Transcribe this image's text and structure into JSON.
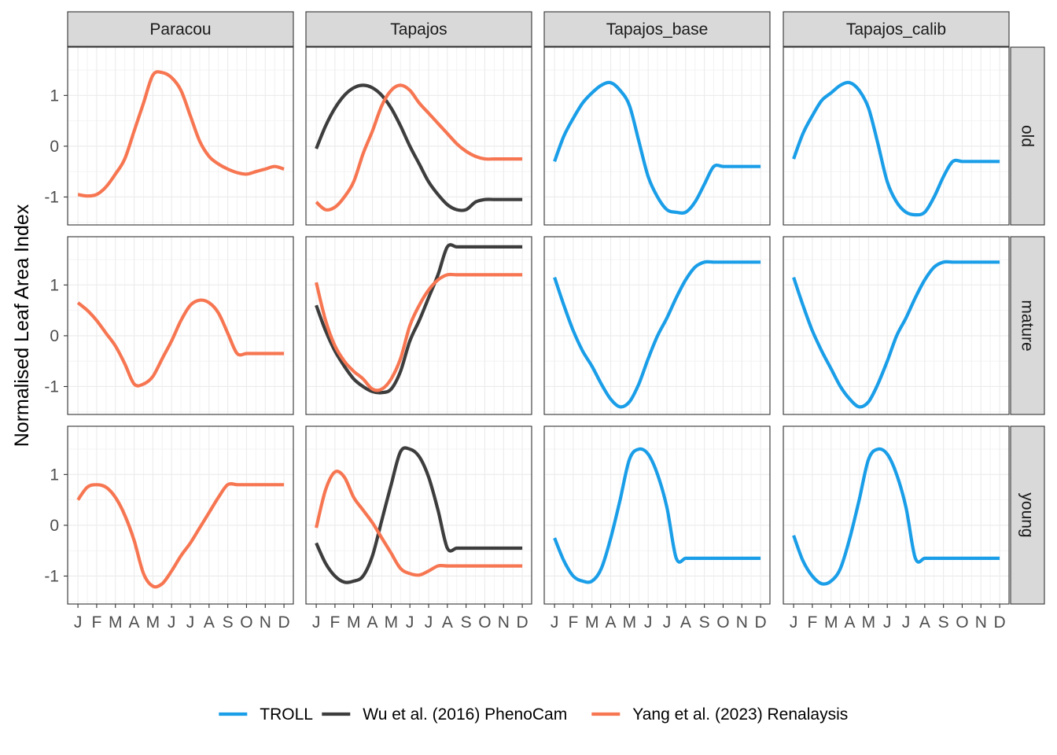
{
  "chart_data": {
    "type": "line",
    "ylabel": "Normalised Leaf Area Index",
    "xlabel": "",
    "x_ticks": [
      "J",
      "F",
      "M",
      "A",
      "M",
      "J",
      "J",
      "A",
      "S",
      "O",
      "N",
      "D"
    ],
    "y_ticks": [
      -1,
      0,
      1
    ],
    "ylim": [
      -1.55,
      1.95
    ],
    "xlim": [
      0.45,
      12.5
    ],
    "columns": [
      "Paracou",
      "Tapajos",
      "Tapajos_base",
      "Tapajos_calib"
    ],
    "rows": [
      "old",
      "mature",
      "young"
    ],
    "grid": true,
    "legend_position": "bottom",
    "legend": [
      {
        "name": "TROLL",
        "color": "#1a9ee8"
      },
      {
        "name": "Wu et al. (2016) PhenoCam",
        "color": "#3d3d3d"
      },
      {
        "name": "Yang et al. (2023) Renalaysis",
        "color": "#f77652"
      }
    ],
    "series": [
      {
        "panel": [
          "old",
          "Paracou"
        ],
        "name": "Yang et al. (2023) Renalaysis",
        "x": [
          1,
          1.5,
          2,
          2.5,
          3,
          3.5,
          4,
          4.5,
          5,
          5.5,
          6,
          6.5,
          7,
          7.5,
          8,
          8.5,
          9,
          9.5,
          10,
          10.5,
          11,
          11.5,
          12
        ],
        "y": [
          -0.95,
          -0.98,
          -0.95,
          -0.8,
          -0.55,
          -0.25,
          0.3,
          0.85,
          1.4,
          1.45,
          1.35,
          1.1,
          0.6,
          0.1,
          -0.2,
          -0.35,
          -0.45,
          -0.52,
          -0.55,
          -0.5,
          -0.45,
          -0.4,
          -0.45
        ]
      },
      {
        "panel": [
          "old",
          "Tapajos"
        ],
        "name": "Wu et al. (2016) PhenoCam",
        "x": [
          1,
          1.5,
          2,
          2.5,
          3,
          3.5,
          4,
          4.5,
          5,
          5.5,
          6,
          6.5,
          7,
          7.5,
          8,
          8.5,
          9,
          9.5,
          10,
          10.5,
          11,
          11.5,
          12
        ],
        "y": [
          -0.05,
          0.4,
          0.75,
          1.0,
          1.15,
          1.2,
          1.15,
          1.0,
          0.75,
          0.4,
          0.0,
          -0.35,
          -0.7,
          -0.95,
          -1.15,
          -1.25,
          -1.25,
          -1.1,
          -1.05,
          -1.05,
          -1.05,
          -1.05,
          -1.05
        ]
      },
      {
        "panel": [
          "old",
          "Tapajos"
        ],
        "name": "Yang et al. (2023) Renalaysis",
        "x": [
          1,
          1.5,
          2,
          2.5,
          3,
          3.5,
          4,
          4.5,
          5,
          5.5,
          6,
          6.5,
          7,
          7.5,
          8,
          8.5,
          9,
          9.5,
          10,
          10.5,
          11,
          11.5,
          12
        ],
        "y": [
          -1.1,
          -1.25,
          -1.2,
          -1.0,
          -0.7,
          -0.15,
          0.3,
          0.8,
          1.1,
          1.2,
          1.1,
          0.85,
          0.65,
          0.45,
          0.25,
          0.05,
          -0.1,
          -0.2,
          -0.25,
          -0.25,
          -0.25,
          -0.25,
          -0.25
        ]
      },
      {
        "panel": [
          "old",
          "Tapajos_base"
        ],
        "name": "TROLL",
        "x": [
          1,
          1.5,
          2,
          2.5,
          3,
          3.5,
          4,
          4.5,
          5,
          5.5,
          6,
          6.5,
          7,
          7.5,
          8,
          8.5,
          9,
          9.5,
          10,
          10.5,
          11,
          11.5,
          12
        ],
        "y": [
          -0.3,
          0.2,
          0.55,
          0.85,
          1.05,
          1.2,
          1.25,
          1.1,
          0.8,
          0.1,
          -0.6,
          -1.0,
          -1.25,
          -1.3,
          -1.3,
          -1.1,
          -0.75,
          -0.4,
          -0.4,
          -0.4,
          -0.4,
          -0.4,
          -0.4
        ]
      },
      {
        "panel": [
          "old",
          "Tapajos_calib"
        ],
        "name": "TROLL",
        "x": [
          1,
          1.5,
          2,
          2.5,
          3,
          3.5,
          4,
          4.5,
          5,
          5.5,
          6,
          6.5,
          7,
          7.5,
          8,
          8.5,
          9,
          9.5,
          10,
          10.5,
          11,
          11.5,
          12
        ],
        "y": [
          -0.25,
          0.25,
          0.6,
          0.9,
          1.05,
          1.2,
          1.25,
          1.1,
          0.75,
          0.05,
          -0.7,
          -1.1,
          -1.3,
          -1.35,
          -1.3,
          -1.0,
          -0.6,
          -0.3,
          -0.3,
          -0.3,
          -0.3,
          -0.3,
          -0.3
        ]
      },
      {
        "panel": [
          "mature",
          "Paracou"
        ],
        "name": "Yang et al. (2023) Renalaysis",
        "x": [
          1,
          1.5,
          2,
          2.5,
          3,
          3.5,
          4,
          4.5,
          5,
          5.5,
          6,
          6.5,
          7,
          7.5,
          8,
          8.5,
          9,
          9.5,
          10,
          10.5,
          11,
          11.5,
          12
        ],
        "y": [
          0.65,
          0.5,
          0.3,
          0.05,
          -0.2,
          -0.55,
          -0.95,
          -0.95,
          -0.8,
          -0.45,
          -0.1,
          0.3,
          0.6,
          0.7,
          0.65,
          0.45,
          0.05,
          -0.35,
          -0.35,
          -0.35,
          -0.35,
          -0.35,
          -0.35
        ]
      },
      {
        "panel": [
          "mature",
          "Tapajos"
        ],
        "name": "Wu et al. (2016) PhenoCam",
        "x": [
          1,
          1.5,
          2,
          2.5,
          3,
          3.5,
          4,
          4.5,
          5,
          5.5,
          6,
          6.5,
          7,
          7.5,
          8,
          8.5,
          9,
          9.5,
          10,
          10.5,
          11,
          11.5,
          12
        ],
        "y": [
          0.6,
          0.1,
          -0.3,
          -0.6,
          -0.85,
          -1.0,
          -1.1,
          -1.12,
          -1.05,
          -0.7,
          -0.1,
          0.3,
          0.75,
          1.2,
          1.75,
          1.75,
          1.75,
          1.75,
          1.75,
          1.75,
          1.75,
          1.75,
          1.75
        ]
      },
      {
        "panel": [
          "mature",
          "Tapajos"
        ],
        "name": "Yang et al. (2023) Renalaysis",
        "x": [
          1,
          1.5,
          2,
          2.5,
          3,
          3.5,
          4,
          4.5,
          5,
          5.5,
          6,
          6.5,
          7,
          7.5,
          8,
          8.5,
          9,
          9.5,
          10,
          10.5,
          11,
          11.5,
          12
        ],
        "y": [
          1.05,
          0.3,
          -0.2,
          -0.5,
          -0.7,
          -0.85,
          -1.05,
          -1.05,
          -0.85,
          -0.45,
          0.2,
          0.6,
          0.9,
          1.1,
          1.2,
          1.2,
          1.2,
          1.2,
          1.2,
          1.2,
          1.2,
          1.2,
          1.2
        ]
      },
      {
        "panel": [
          "mature",
          "Tapajos_base"
        ],
        "name": "TROLL",
        "x": [
          1,
          1.5,
          2,
          2.5,
          3,
          3.5,
          4,
          4.5,
          5,
          5.5,
          6,
          6.5,
          7,
          7.5,
          8,
          8.5,
          9,
          9.5,
          10,
          10.5,
          11,
          11.5,
          12
        ],
        "y": [
          1.15,
          0.6,
          0.1,
          -0.3,
          -0.6,
          -0.95,
          -1.25,
          -1.4,
          -1.3,
          -0.95,
          -0.45,
          0.0,
          0.35,
          0.75,
          1.1,
          1.35,
          1.45,
          1.45,
          1.45,
          1.45,
          1.45,
          1.45,
          1.45
        ]
      },
      {
        "panel": [
          "mature",
          "Tapajos_calib"
        ],
        "name": "TROLL",
        "x": [
          1,
          1.5,
          2,
          2.5,
          3,
          3.5,
          4,
          4.5,
          5,
          5.5,
          6,
          6.5,
          7,
          7.5,
          8,
          8.5,
          9,
          9.5,
          10,
          10.5,
          11,
          11.5,
          12
        ],
        "y": [
          1.15,
          0.6,
          0.1,
          -0.3,
          -0.65,
          -1.0,
          -1.25,
          -1.4,
          -1.3,
          -0.95,
          -0.5,
          0.0,
          0.35,
          0.75,
          1.1,
          1.35,
          1.45,
          1.45,
          1.45,
          1.45,
          1.45,
          1.45,
          1.45
        ]
      },
      {
        "panel": [
          "young",
          "Paracou"
        ],
        "name": "Yang et al. (2023) Renalaysis",
        "x": [
          1,
          1.5,
          2,
          2.5,
          3,
          3.5,
          4,
          4.5,
          5,
          5.5,
          6,
          6.5,
          7,
          7.5,
          8,
          8.5,
          9,
          9.5,
          10,
          10.5,
          11,
          11.5,
          12
        ],
        "y": [
          0.5,
          0.75,
          0.8,
          0.75,
          0.55,
          0.2,
          -0.3,
          -0.95,
          -1.2,
          -1.15,
          -0.9,
          -0.6,
          -0.35,
          -0.05,
          0.25,
          0.55,
          0.8,
          0.8,
          0.8,
          0.8,
          0.8,
          0.8,
          0.8
        ]
      },
      {
        "panel": [
          "young",
          "Tapajos"
        ],
        "name": "Wu et al. (2016) PhenoCam",
        "x": [
          1,
          1.5,
          2,
          2.5,
          3,
          3.5,
          4,
          4.5,
          5,
          5.5,
          6,
          6.5,
          7,
          7.5,
          8,
          8.5,
          9,
          9.5,
          10,
          10.5,
          11,
          11.5,
          12
        ],
        "y": [
          -0.35,
          -0.75,
          -1.0,
          -1.12,
          -1.1,
          -1.0,
          -0.6,
          0.1,
          0.8,
          1.45,
          1.5,
          1.35,
          0.95,
          0.3,
          -0.45,
          -0.45,
          -0.45,
          -0.45,
          -0.45,
          -0.45,
          -0.45,
          -0.45,
          -0.45
        ]
      },
      {
        "panel": [
          "young",
          "Tapajos"
        ],
        "name": "Yang et al. (2023) Renalaysis",
        "x": [
          1,
          1.5,
          2,
          2.5,
          3,
          3.5,
          4,
          4.5,
          5,
          5.5,
          6,
          6.5,
          7,
          7.5,
          8,
          8.5,
          9,
          9.5,
          10,
          10.5,
          11,
          11.5,
          12
        ],
        "y": [
          -0.05,
          0.7,
          1.05,
          0.95,
          0.55,
          0.3,
          0.05,
          -0.25,
          -0.55,
          -0.85,
          -0.95,
          -0.98,
          -0.9,
          -0.8,
          -0.8,
          -0.8,
          -0.8,
          -0.8,
          -0.8,
          -0.8,
          -0.8,
          -0.8,
          -0.8
        ]
      },
      {
        "panel": [
          "young",
          "Tapajos_base"
        ],
        "name": "TROLL",
        "x": [
          1,
          1.5,
          2,
          2.5,
          3,
          3.5,
          4,
          4.5,
          5,
          5.5,
          6,
          6.5,
          7,
          7.5,
          8,
          8.5,
          9,
          9.5,
          10,
          10.5,
          11,
          11.5,
          12
        ],
        "y": [
          -0.25,
          -0.7,
          -1.0,
          -1.1,
          -1.1,
          -0.85,
          -0.25,
          0.5,
          1.3,
          1.5,
          1.4,
          1.0,
          0.35,
          -0.65,
          -0.65,
          -0.65,
          -0.65,
          -0.65,
          -0.65,
          -0.65,
          -0.65,
          -0.65,
          -0.65
        ]
      },
      {
        "panel": [
          "young",
          "Tapajos_calib"
        ],
        "name": "TROLL",
        "x": [
          1,
          1.5,
          2,
          2.5,
          3,
          3.5,
          4,
          4.5,
          5,
          5.5,
          6,
          6.5,
          7,
          7.5,
          8,
          8.5,
          9,
          9.5,
          10,
          10.5,
          11,
          11.5,
          12
        ],
        "y": [
          -0.2,
          -0.7,
          -1.0,
          -1.15,
          -1.1,
          -0.85,
          -0.25,
          0.5,
          1.3,
          1.5,
          1.4,
          1.0,
          0.35,
          -0.65,
          -0.65,
          -0.65,
          -0.65,
          -0.65,
          -0.65,
          -0.65,
          -0.65,
          -0.65,
          -0.65
        ]
      }
    ]
  }
}
